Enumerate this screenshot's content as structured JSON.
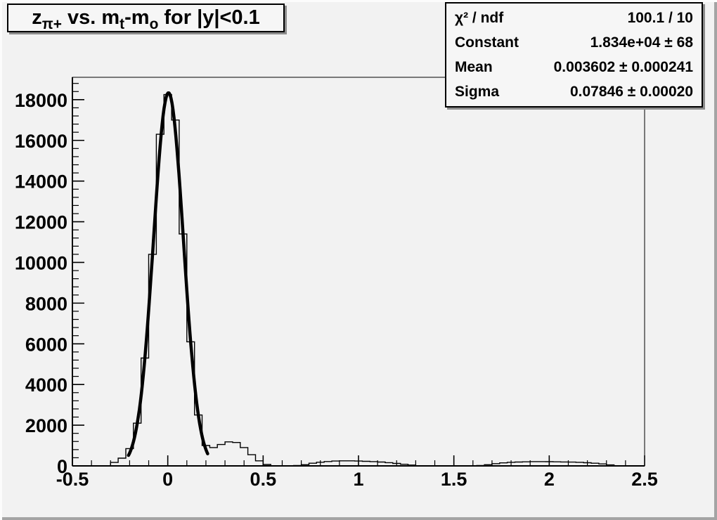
{
  "canvas": {
    "background": "#f2f2f2",
    "bevel_highlight": "#fcfcfc",
    "bevel_shadow": "#a4a4a4",
    "box_shadow_color": "#8c8c8c",
    "line_color": "#000000"
  },
  "title_box": {
    "title_plain": "z_π+ vs. m_t-m_o for |y|<0.1",
    "parts": [
      {
        "text": "z"
      },
      {
        "sub": "π+"
      },
      {
        "text": " vs. m"
      },
      {
        "sub": "t"
      },
      {
        "text": "-m"
      },
      {
        "sub": "o"
      },
      {
        "text": " for |y|<0.1"
      }
    ]
  },
  "stats_box": {
    "rows": [
      {
        "label": "χ² / ndf",
        "value": "100.1 / 10"
      },
      {
        "label": "Constant",
        "value": "1.834e+04 ± 68"
      },
      {
        "label": "Mean",
        "value": "0.003602 ± 0.000241"
      },
      {
        "label": "Sigma",
        "value": "0.07846 ± 0.00020"
      }
    ]
  },
  "chart_data": {
    "type": "bar",
    "subtype": "histogram-with-gaussian-fit",
    "title": "z_π+ vs. m_t-m_o for |y|<0.1",
    "xlabel": "",
    "ylabel": "",
    "xlim": [
      -0.5,
      2.5
    ],
    "ylim": [
      0,
      19100
    ],
    "grid": false,
    "legend_position": "stats box top-right",
    "x_tick_values": [
      -0.5,
      0,
      0.5,
      1,
      1.5,
      2,
      2.5
    ],
    "x_tick_labels": [
      "-0.5",
      "0",
      "0.5",
      "1",
      "1.5",
      "2",
      "2.5"
    ],
    "x_minor_step": 0.1,
    "y_tick_values": [
      0,
      2000,
      4000,
      6000,
      8000,
      10000,
      12000,
      14000,
      16000,
      18000
    ],
    "y_tick_labels": [
      "0",
      "2000",
      "4000",
      "6000",
      "8000",
      "10000",
      "12000",
      "14000",
      "16000",
      "18000"
    ],
    "y_minor_step": 400,
    "histogram": {
      "bin_start": -0.5,
      "bin_width": 0.04,
      "values": [
        0,
        0,
        0,
        0,
        0,
        170,
        380,
        850,
        2100,
        5300,
        10400,
        16300,
        18250,
        17000,
        11400,
        6100,
        2500,
        1000,
        900,
        1050,
        1180,
        1150,
        900,
        550,
        250,
        70,
        0,
        0,
        0,
        20,
        60,
        130,
        180,
        215,
        240,
        250,
        250,
        240,
        225,
        210,
        190,
        160,
        120,
        80,
        40,
        10,
        0,
        0,
        0,
        0,
        0,
        0,
        0,
        20,
        60,
        110,
        150,
        175,
        190,
        200,
        210,
        212,
        208,
        200,
        195,
        188,
        175,
        155,
        130,
        95,
        50,
        10,
        0,
        0,
        0
      ]
    },
    "fit": {
      "type": "gaussian",
      "constant": 18340,
      "mean": 0.0036,
      "sigma": 0.07846,
      "chi2": 100.1,
      "ndf": 10,
      "draw_range": [
        -0.206,
        0.209
      ]
    }
  }
}
